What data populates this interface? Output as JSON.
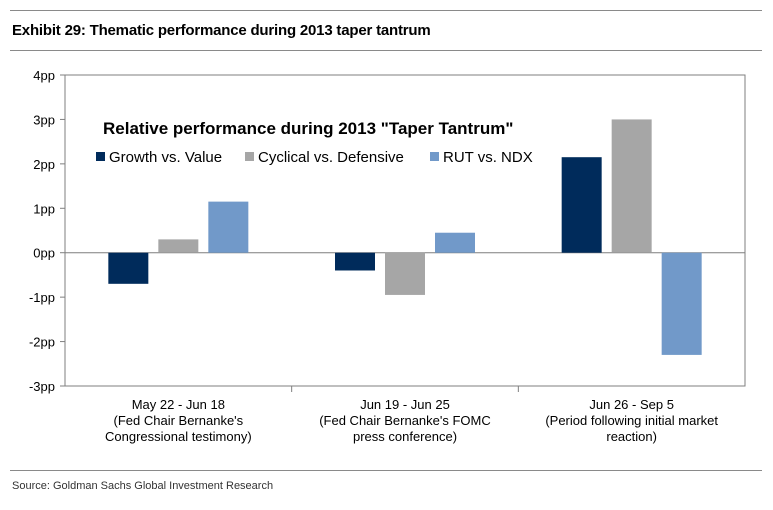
{
  "exhibit_title": "Exhibit 29: Thematic performance during 2013 taper tantrum",
  "source": "Source: Goldman Sachs Global Investment Research",
  "colors": {
    "growth": "#002b5b",
    "cyclical": "#a6a6a6",
    "rut": "#7199c9"
  },
  "chart_data": {
    "type": "bar",
    "title": "Relative performance during 2013 \"Taper Tantrum\"",
    "categories": [
      [
        "May 22 - Jun 18",
        "(Fed Chair Bernanke's",
        "Congressional testimony)"
      ],
      [
        "Jun 19 - Jun 25",
        "(Fed Chair Bernanke's FOMC",
        "press conference)"
      ],
      [
        "Jun 26 - Sep 5",
        "(Period following initial market",
        "reaction)"
      ]
    ],
    "series": [
      {
        "name": "Growth vs. Value",
        "values": [
          -0.7,
          -0.4,
          2.15
        ]
      },
      {
        "name": "Cyclical vs. Defensive",
        "values": [
          0.3,
          -0.95,
          3.0
        ]
      },
      {
        "name": "RUT vs. NDX",
        "values": [
          1.15,
          0.45,
          -2.3
        ]
      }
    ],
    "yticks": [
      "4pp",
      "3pp",
      "2pp",
      "1pp",
      "0pp",
      "-1pp",
      "-2pp",
      "-3pp"
    ],
    "ylim": [
      -3,
      4
    ],
    "legend_position": "top-left, inside plot",
    "grid": false
  }
}
